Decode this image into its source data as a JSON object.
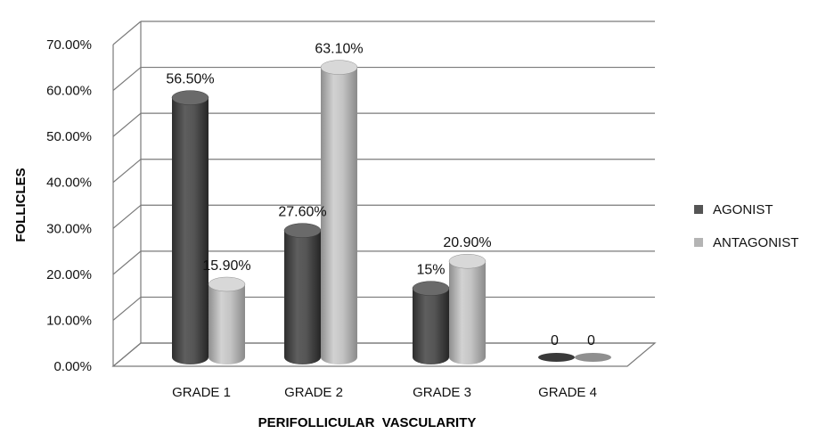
{
  "chart_data": {
    "type": "bar",
    "title": "",
    "xlabel": "PERIFOLLICULAR  VASCULARITY",
    "ylabel": "FOLLICLES",
    "categories": [
      "GRADE 1",
      "GRADE 2",
      "GRADE 3",
      "GRADE 4"
    ],
    "ylim": [
      0,
      70
    ],
    "yticks": [
      0,
      10,
      20,
      30,
      40,
      50,
      60,
      70
    ],
    "ytick_labels": [
      "0.00%",
      "10.00%",
      "20.00%",
      "30.00%",
      "40.00%",
      "50.00%",
      "60.00%",
      "70.00%"
    ],
    "series": [
      {
        "name": "AGONIST",
        "values": [
          56.5,
          27.6,
          15,
          0
        ],
        "labels": [
          "56.50%",
          "27.60%",
          "15%",
          "0"
        ],
        "color": "#4d4d4d"
      },
      {
        "name": "ANTAGONIST",
        "values": [
          15.9,
          63.1,
          20.9,
          0
        ],
        "labels": [
          "15.90%",
          "63.10%",
          "20.90%",
          "0"
        ],
        "color": "#b0b0b0"
      }
    ],
    "grid": true,
    "legend": "right",
    "style": "3d-cylinder"
  }
}
